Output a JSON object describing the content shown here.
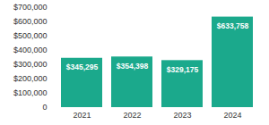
{
  "chart_data": {
    "type": "bar",
    "categories": [
      "2021",
      "2022",
      "2023",
      "2024"
    ],
    "values": [
      345295,
      354398,
      329175,
      633758
    ],
    "value_labels": [
      "$345,295",
      "$354,398",
      "$329,175",
      "$633,758"
    ],
    "data_labels": true,
    "color": "#1ba98c",
    "ylim": [
      0,
      700000
    ],
    "yticks": [
      0,
      {
        "value": 100000,
        "label": "$100,000"
      },
      {
        "value": 200000,
        "label": "$200,000"
      },
      {
        "value": 300000,
        "label": "$300,000"
      },
      {
        "value": 400000,
        "label": "$400,000"
      },
      {
        "value": 500000,
        "label": "$500,000"
      },
      {
        "value": 600000,
        "label": "$600,000"
      },
      {
        "value": 700000,
        "label": "$700,000"
      }
    ],
    "grid": false
  }
}
